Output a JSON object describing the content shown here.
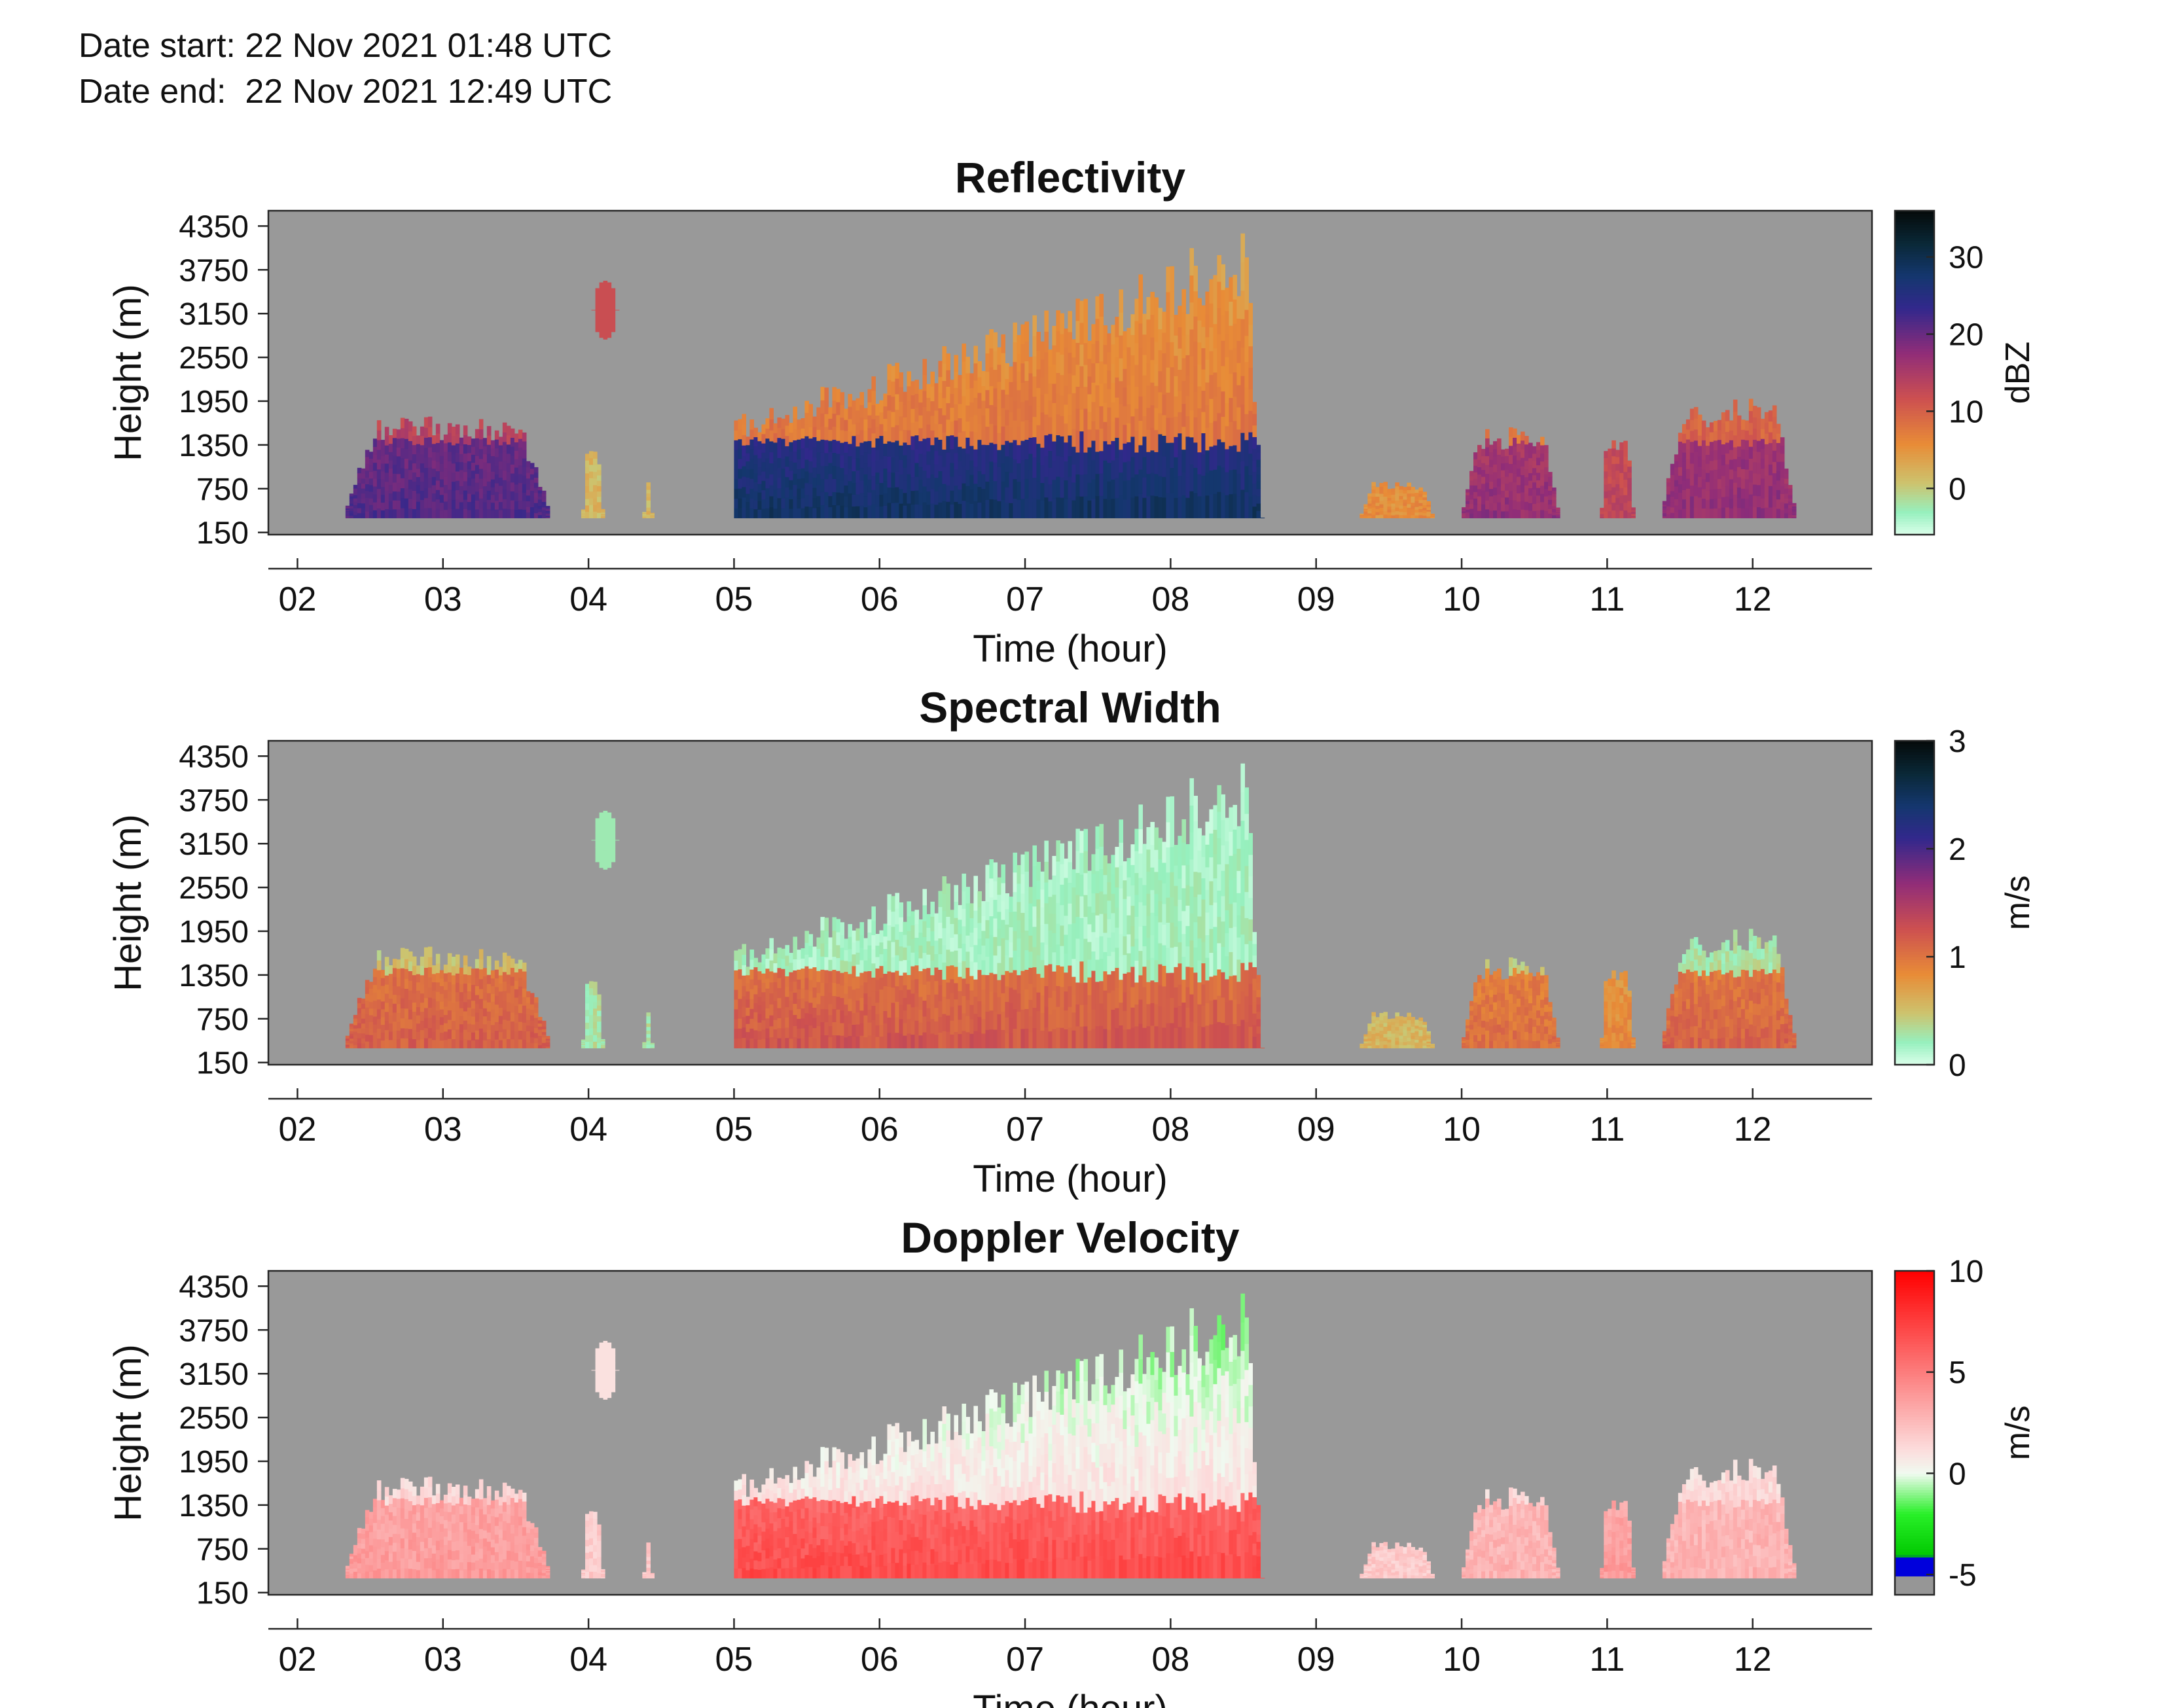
{
  "header": {
    "date_start": "Date start: 22 Nov 2021 01:48 UTC",
    "date_end": "Date end:  22 Nov 2021 12:49 UTC"
  },
  "colors": {
    "background_gray": "#999999",
    "axis": "#262626"
  },
  "chart_data": [
    {
      "type": "heatmap",
      "title": "Reflectivity",
      "xlabel": "Time (hour)",
      "ylabel": "Height (m)",
      "x_ticks": [
        "02",
        "03",
        "04",
        "05",
        "06",
        "07",
        "08",
        "09",
        "10",
        "11",
        "12"
      ],
      "y_ticks": [
        "150",
        "750",
        "1350",
        "1950",
        "2550",
        "3150",
        "3750",
        "4350"
      ],
      "xlim": [
        1.8,
        12.82
      ],
      "ylim": [
        120,
        4560
      ],
      "colorbar": {
        "label": "dBZ",
        "ticks": [
          "0",
          "10",
          "20",
          "30"
        ],
        "range": [
          -6,
          36
        ],
        "palette": "thermal",
        "no_data_color": "#999999"
      },
      "echoes": [
        {
          "label": "boundary-layer cloud 02-03h",
          "x_start": 2.33,
          "x_end": 3.72,
          "top_m": 1750,
          "value_low": 22,
          "value_high": 14
        },
        {
          "label": "small cell 04h",
          "x_start": 3.95,
          "x_end": 4.1,
          "top_m": 1300,
          "value_low": 2,
          "value_high": 0
        },
        {
          "label": "small cell 04:20h",
          "x_start": 4.37,
          "x_end": 4.45,
          "top_m": 900,
          "value_low": 2,
          "value_high": 0
        },
        {
          "label": "isolated echo aloft 04h",
          "x_start": 4.02,
          "x_end": 4.2,
          "bottom_m": 2800,
          "top_m": 3600,
          "value_low": 12,
          "value_high": 12
        },
        {
          "label": "precipitation 05-08:40h",
          "x_start": 5.0,
          "x_end": 8.65,
          "top_m": 4450,
          "value_low": 30,
          "value_high": 8
        },
        {
          "label": "cloud 09:20h",
          "x_start": 9.3,
          "x_end": 9.82,
          "top_m": 850,
          "value_low": 6,
          "value_high": 2
        },
        {
          "label": "cloud 10h",
          "x_start": 10.0,
          "x_end": 10.68,
          "top_m": 1600,
          "value_low": 18,
          "value_high": 8
        },
        {
          "label": "cloud 11h",
          "x_start": 10.95,
          "x_end": 11.2,
          "top_m": 1450,
          "value_low": 14,
          "value_high": 6
        },
        {
          "label": "cloud 11:30-12:20h",
          "x_start": 11.38,
          "x_end": 12.3,
          "top_m": 2000,
          "value_low": 18,
          "value_high": 10
        }
      ]
    },
    {
      "type": "heatmap",
      "title": "Spectral Width",
      "xlabel": "Time (hour)",
      "ylabel": "Height (m)",
      "x_ticks": [
        "02",
        "03",
        "04",
        "05",
        "06",
        "07",
        "08",
        "09",
        "10",
        "11",
        "12"
      ],
      "y_ticks": [
        "150",
        "750",
        "1350",
        "1950",
        "2550",
        "3150",
        "3750",
        "4350"
      ],
      "xlim": [
        1.8,
        12.82
      ],
      "ylim": [
        120,
        4560
      ],
      "colorbar": {
        "label": "m/s",
        "ticks": [
          "0",
          "1",
          "2",
          "3"
        ],
        "range": [
          0,
          3
        ],
        "palette": "thermal",
        "no_data_color": "#999999"
      },
      "echoes": [
        {
          "label": "boundary-layer cloud 02-03h",
          "x_start": 2.33,
          "x_end": 3.72,
          "top_m": 1750,
          "value_low": 1.2,
          "value_high": 0.5
        },
        {
          "label": "small cell 04h",
          "x_start": 3.95,
          "x_end": 4.1,
          "top_m": 1300,
          "value_low": 0.3,
          "value_high": 0.2
        },
        {
          "label": "small cell 04:20h",
          "x_start": 4.37,
          "x_end": 4.45,
          "top_m": 900,
          "value_low": 0.3,
          "value_high": 0.2
        },
        {
          "label": "isolated echo aloft 04h",
          "x_start": 4.02,
          "x_end": 4.2,
          "bottom_m": 2800,
          "top_m": 3600,
          "value_low": 0.25,
          "value_high": 0.25
        },
        {
          "label": "precipitation 05-08:40h",
          "x_start": 5.0,
          "x_end": 8.65,
          "top_m": 4450,
          "value_low": 1.3,
          "value_high": 0.2
        },
        {
          "label": "cloud 09:20h",
          "x_start": 9.3,
          "x_end": 9.82,
          "top_m": 850,
          "value_low": 0.6,
          "value_high": 0.3
        },
        {
          "label": "cloud 10h",
          "x_start": 10.0,
          "x_end": 10.68,
          "top_m": 1600,
          "value_low": 1.1,
          "value_high": 0.4
        },
        {
          "label": "cloud 11h",
          "x_start": 10.95,
          "x_end": 11.2,
          "top_m": 1450,
          "value_low": 0.9,
          "value_high": 0.4
        },
        {
          "label": "cloud 11:30-12:20h",
          "x_start": 11.38,
          "x_end": 12.3,
          "top_m": 2000,
          "value_low": 1.2,
          "value_high": 0.3
        }
      ]
    },
    {
      "type": "heatmap",
      "title": "Doppler Velocity",
      "xlabel": "Time (hour)",
      "ylabel": "Height (m)",
      "x_ticks": [
        "02",
        "03",
        "04",
        "05",
        "06",
        "07",
        "08",
        "09",
        "10",
        "11",
        "12"
      ],
      "y_ticks": [
        "150",
        "750",
        "1350",
        "1950",
        "2550",
        "3150",
        "3750",
        "4350"
      ],
      "xlim": [
        1.8,
        12.82
      ],
      "ylim": [
        120,
        4560
      ],
      "colorbar": {
        "label": "m/s",
        "ticks": [
          "-5",
          "0",
          "5",
          "10"
        ],
        "range": [
          -6,
          10
        ],
        "palette": "diverging",
        "no_data_color": "#999999"
      },
      "echoes": [
        {
          "label": "boundary-layer cloud 02-03h",
          "x_start": 2.33,
          "x_end": 3.72,
          "top_m": 1750,
          "value_low": 4,
          "value_high": 1.5
        },
        {
          "label": "small cell 04h",
          "x_start": 3.95,
          "x_end": 4.1,
          "top_m": 1300,
          "value_low": 2,
          "value_high": 1
        },
        {
          "label": "small cell 04:20h",
          "x_start": 4.37,
          "x_end": 4.45,
          "top_m": 900,
          "value_low": 2,
          "value_high": 1
        },
        {
          "label": "isolated echo aloft 04h",
          "x_start": 4.02,
          "x_end": 4.2,
          "bottom_m": 2800,
          "top_m": 3600,
          "value_low": 1,
          "value_high": 1
        },
        {
          "label": "precipitation 05-08:40h",
          "x_start": 5.0,
          "x_end": 8.65,
          "top_m": 4450,
          "value_low": 7.5,
          "value_high": 1
        },
        {
          "label": "cloud 09:20h",
          "x_start": 9.3,
          "x_end": 9.82,
          "top_m": 850,
          "value_low": 2,
          "value_high": 1
        },
        {
          "label": "cloud 10h",
          "x_start": 10.0,
          "x_end": 10.68,
          "top_m": 1600,
          "value_low": 3,
          "value_high": 1.5
        },
        {
          "label": "cloud 11h",
          "x_start": 10.95,
          "x_end": 11.2,
          "top_m": 1450,
          "value_low": 4,
          "value_high": 1.5
        },
        {
          "label": "cloud 11:30-12:20h",
          "x_start": 11.38,
          "x_end": 12.3,
          "top_m": 2000,
          "value_low": 3,
          "value_high": 1.5
        }
      ]
    }
  ]
}
